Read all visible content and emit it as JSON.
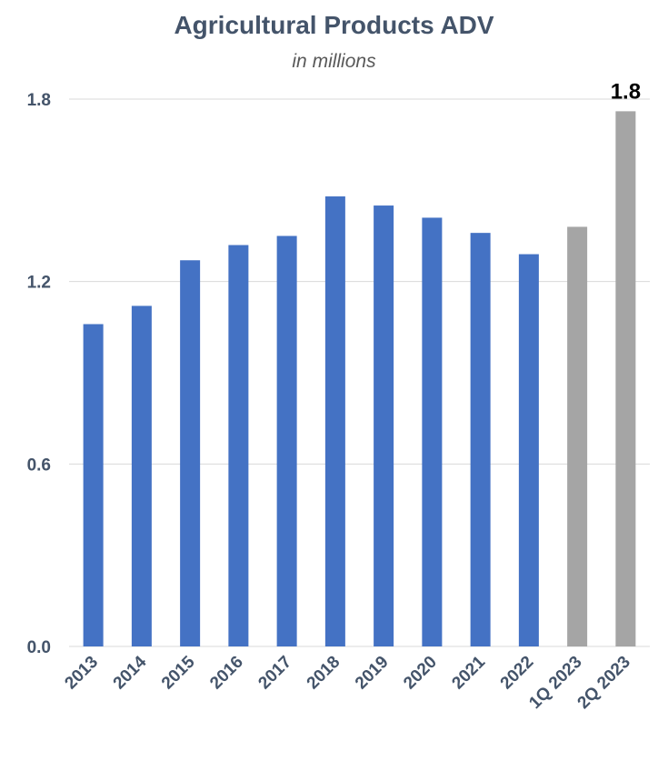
{
  "chart_data": {
    "type": "bar",
    "title": "Agricultural Products ADV",
    "subtitle": "in millions",
    "categories": [
      "2013",
      "2014",
      "2015",
      "2016",
      "2017",
      "2018",
      "2019",
      "2020",
      "2021",
      "2022",
      "1Q 2023",
      "2Q 2023"
    ],
    "values": [
      1.06,
      1.12,
      1.27,
      1.32,
      1.35,
      1.48,
      1.45,
      1.41,
      1.36,
      1.29,
      1.38,
      1.76
    ],
    "bar_colors": [
      "#4472c4",
      "#4472c4",
      "#4472c4",
      "#4472c4",
      "#4472c4",
      "#4472c4",
      "#4472c4",
      "#4472c4",
      "#4472c4",
      "#4472c4",
      "#a5a5a5",
      "#a5a5a5"
    ],
    "data_labels": [
      "",
      "",
      "",
      "",
      "",
      "",
      "",
      "",
      "",
      "",
      "",
      "1.8"
    ],
    "yticks": [
      "0.0",
      "0.6",
      "1.2",
      "1.8"
    ],
    "ylim": [
      0,
      1.8
    ],
    "xlabel": "",
    "ylabel": "",
    "grid": true
  }
}
